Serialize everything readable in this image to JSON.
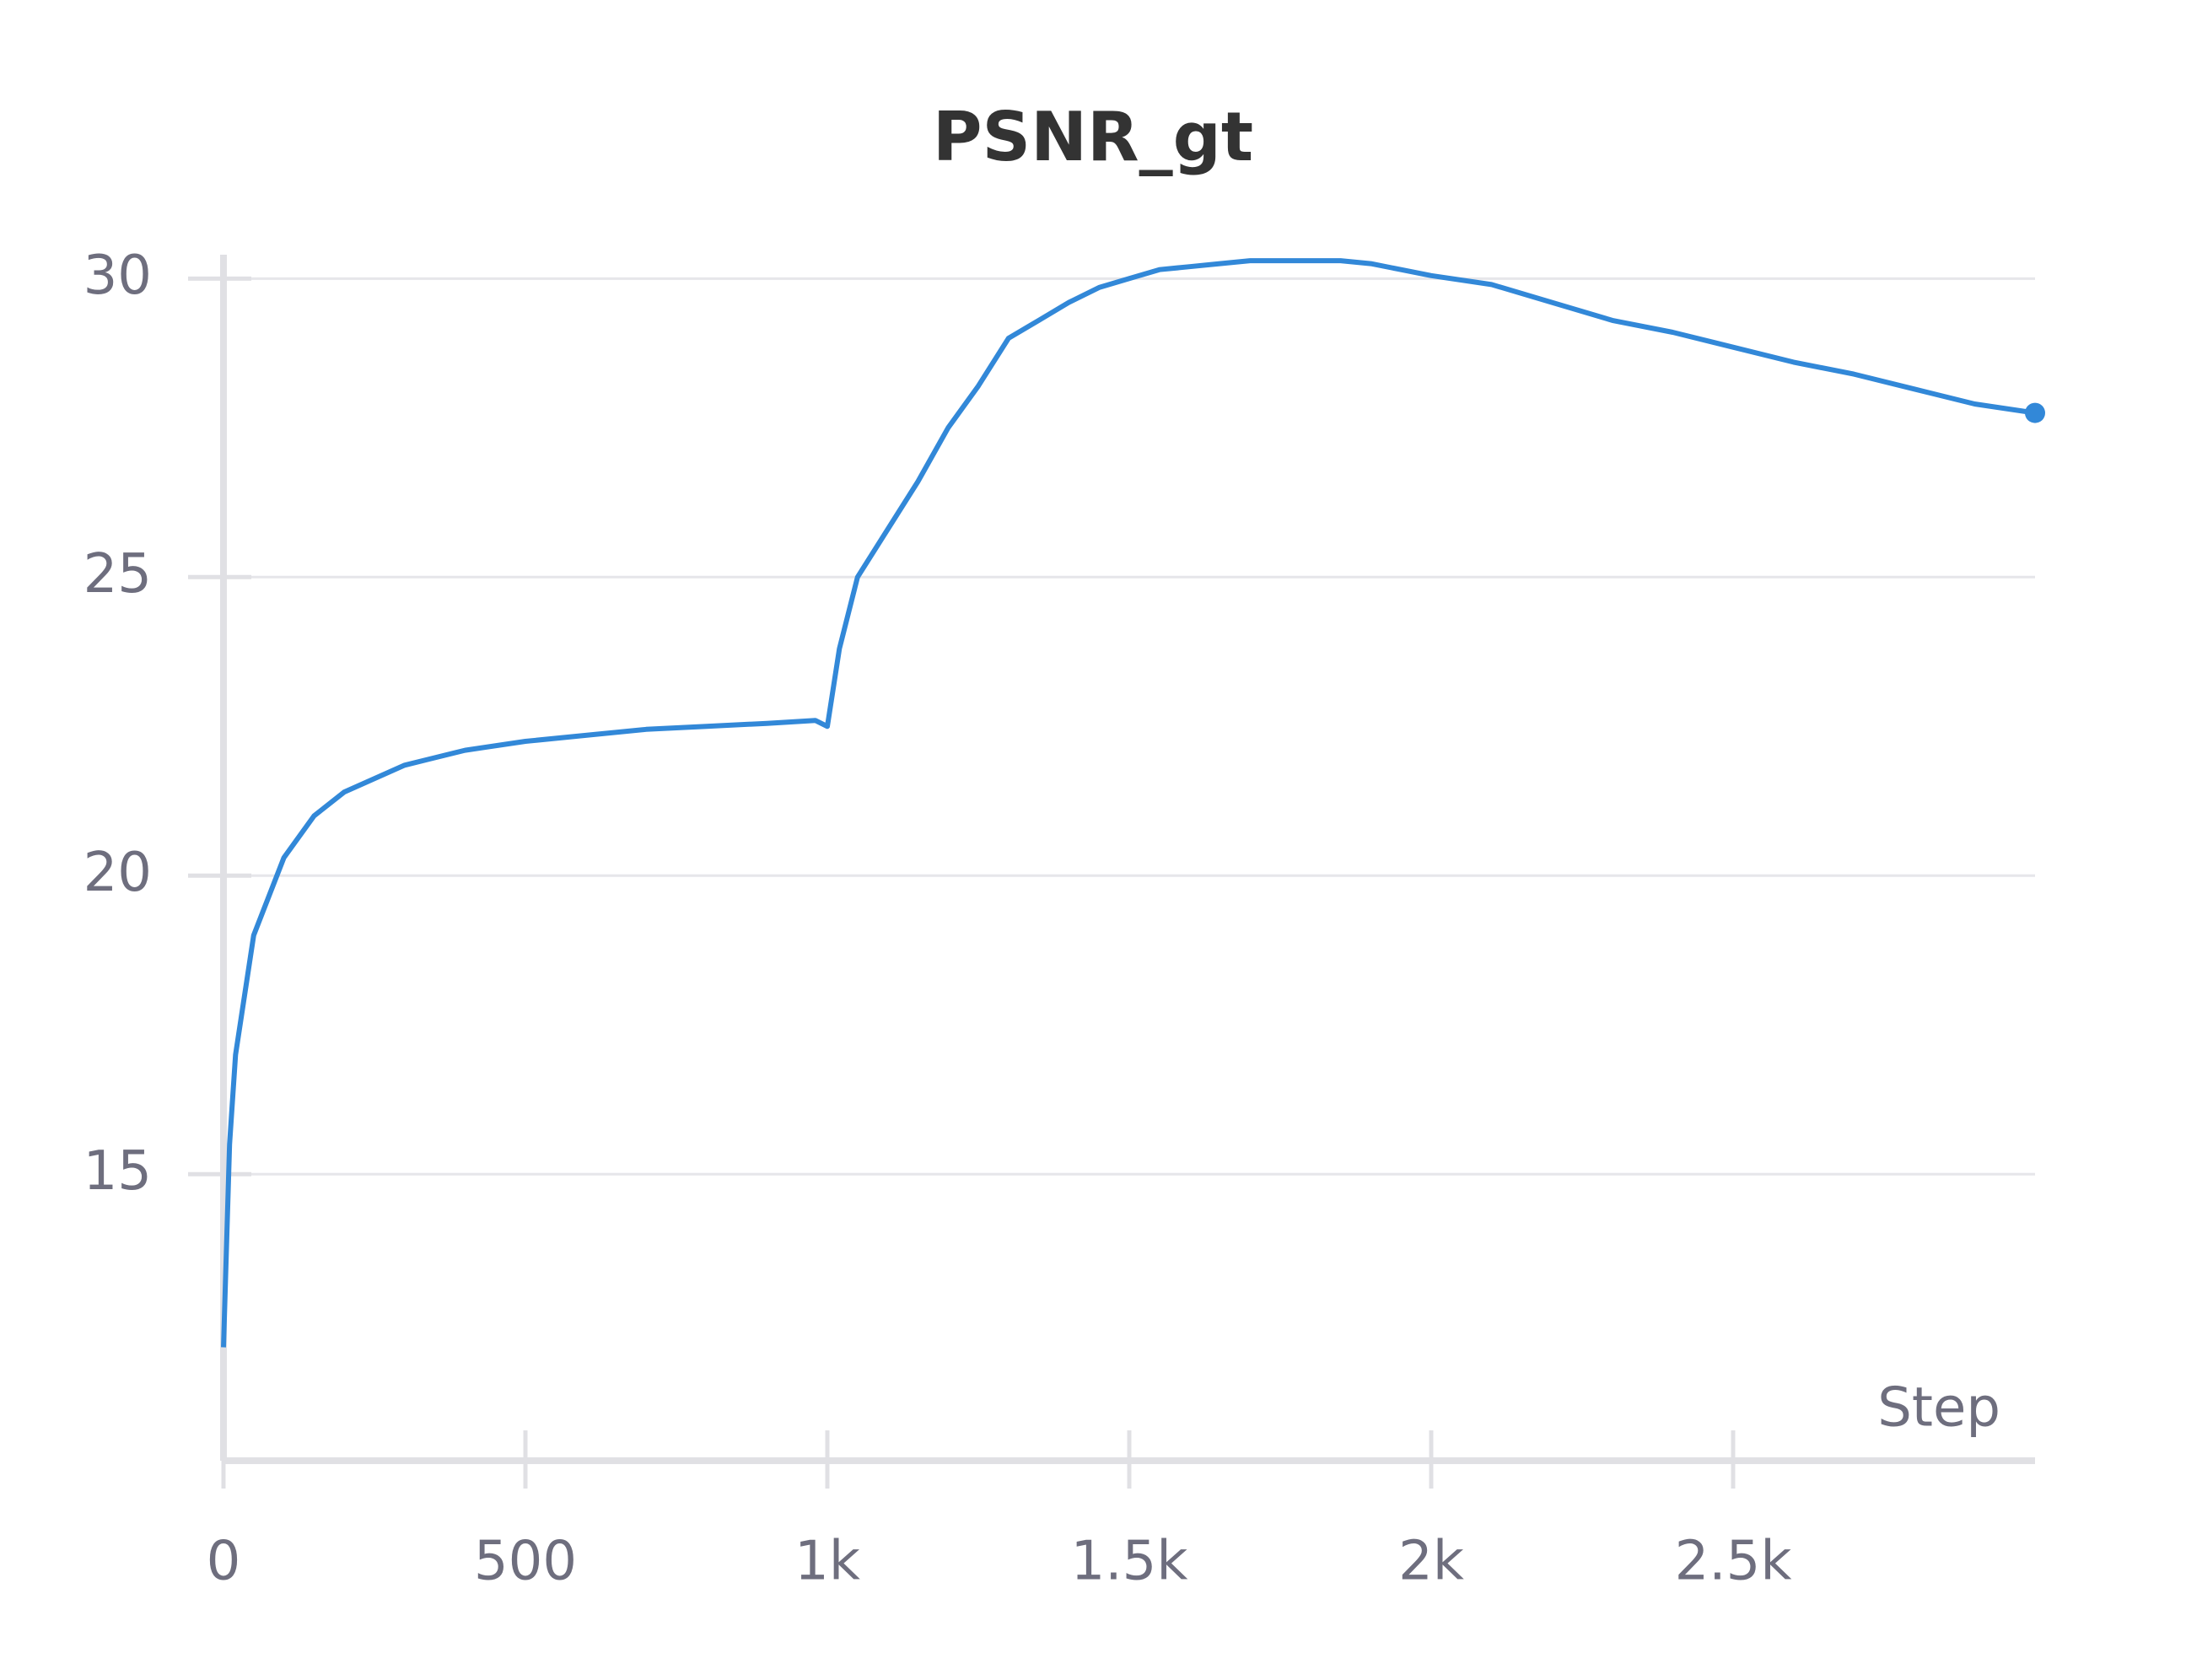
{
  "chart_data": {
    "type": "line",
    "title": "PSNR_gt",
    "x_label": "Step",
    "x": [
      0,
      10,
      20,
      50,
      100,
      150,
      200,
      300,
      400,
      500,
      600,
      700,
      800,
      900,
      980,
      1000,
      1020,
      1050,
      1100,
      1150,
      1200,
      1250,
      1300,
      1350,
      1400,
      1450,
      1500,
      1550,
      1600,
      1650,
      1700,
      1750,
      1800,
      1850,
      1900,
      1950,
      2000,
      2100,
      2200,
      2300,
      2400,
      2500,
      2600,
      2700,
      2800,
      2900,
      3000
    ],
    "values": [
      12.1,
      15.5,
      17,
      19,
      20.3,
      21,
      21.4,
      21.85,
      22.1,
      22.25,
      22.35,
      22.45,
      22.5,
      22.55,
      22.6,
      22.5,
      23.8,
      25.0,
      25.8,
      26.6,
      27.5,
      28.2,
      29.0,
      29.3,
      29.6,
      29.85,
      30.0,
      30.15,
      30.2,
      30.25,
      30.3,
      30.3,
      30.3,
      30.3,
      30.25,
      30.15,
      30.05,
      29.9,
      29.6,
      29.3,
      29.1,
      28.85,
      28.6,
      28.4,
      28.15,
      27.9,
      27.75
    ],
    "color": "#3288d8",
    "xlim": [
      0,
      3000
    ],
    "ylim": [
      10.2,
      30.4
    ],
    "xticks": [
      0,
      500,
      {
        "value": 1000,
        "label": "1k"
      },
      {
        "value": 1500,
        "label": "1.5k"
      },
      {
        "value": 2000,
        "label": "2k"
      },
      {
        "value": 2500,
        "label": "2.5k"
      }
    ],
    "yticks": [
      15,
      20,
      25,
      30
    ],
    "grid": true
  }
}
